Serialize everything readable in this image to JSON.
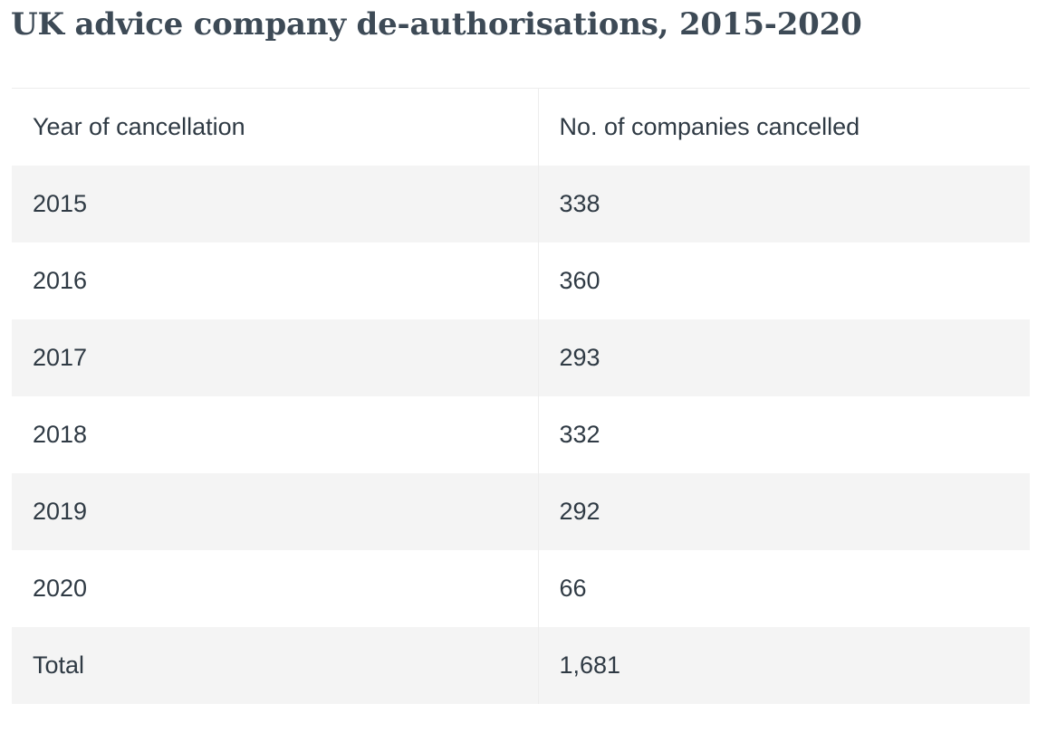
{
  "title": "UK advice company de-authorisations, 2015-2020",
  "table": {
    "headers": [
      "Year of cancellation",
      "No. of companies cancelled"
    ],
    "rows": [
      [
        "2015",
        "338"
      ],
      [
        "2016",
        "360"
      ],
      [
        "2017",
        "293"
      ],
      [
        "2018",
        "332"
      ],
      [
        "2019",
        "292"
      ],
      [
        "2020",
        "66"
      ],
      [
        "Total",
        "1,681"
      ]
    ]
  }
}
